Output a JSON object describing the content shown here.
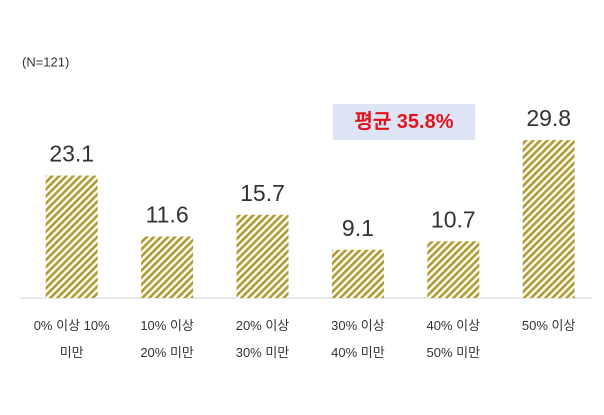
{
  "chart_data": {
    "type": "bar",
    "note": "(N=121)",
    "annotation": "평균 35.8%",
    "categories": [
      "0% 이상 10% 미만",
      "10% 이상 20% 미만",
      "20% 이상 30% 미만",
      "30% 이상 40% 미만",
      "40% 이상 50% 미만",
      "50% 이상"
    ],
    "values": [
      23.1,
      11.6,
      15.7,
      9.1,
      10.7,
      29.8
    ],
    "color": "#b09a3a"
  }
}
